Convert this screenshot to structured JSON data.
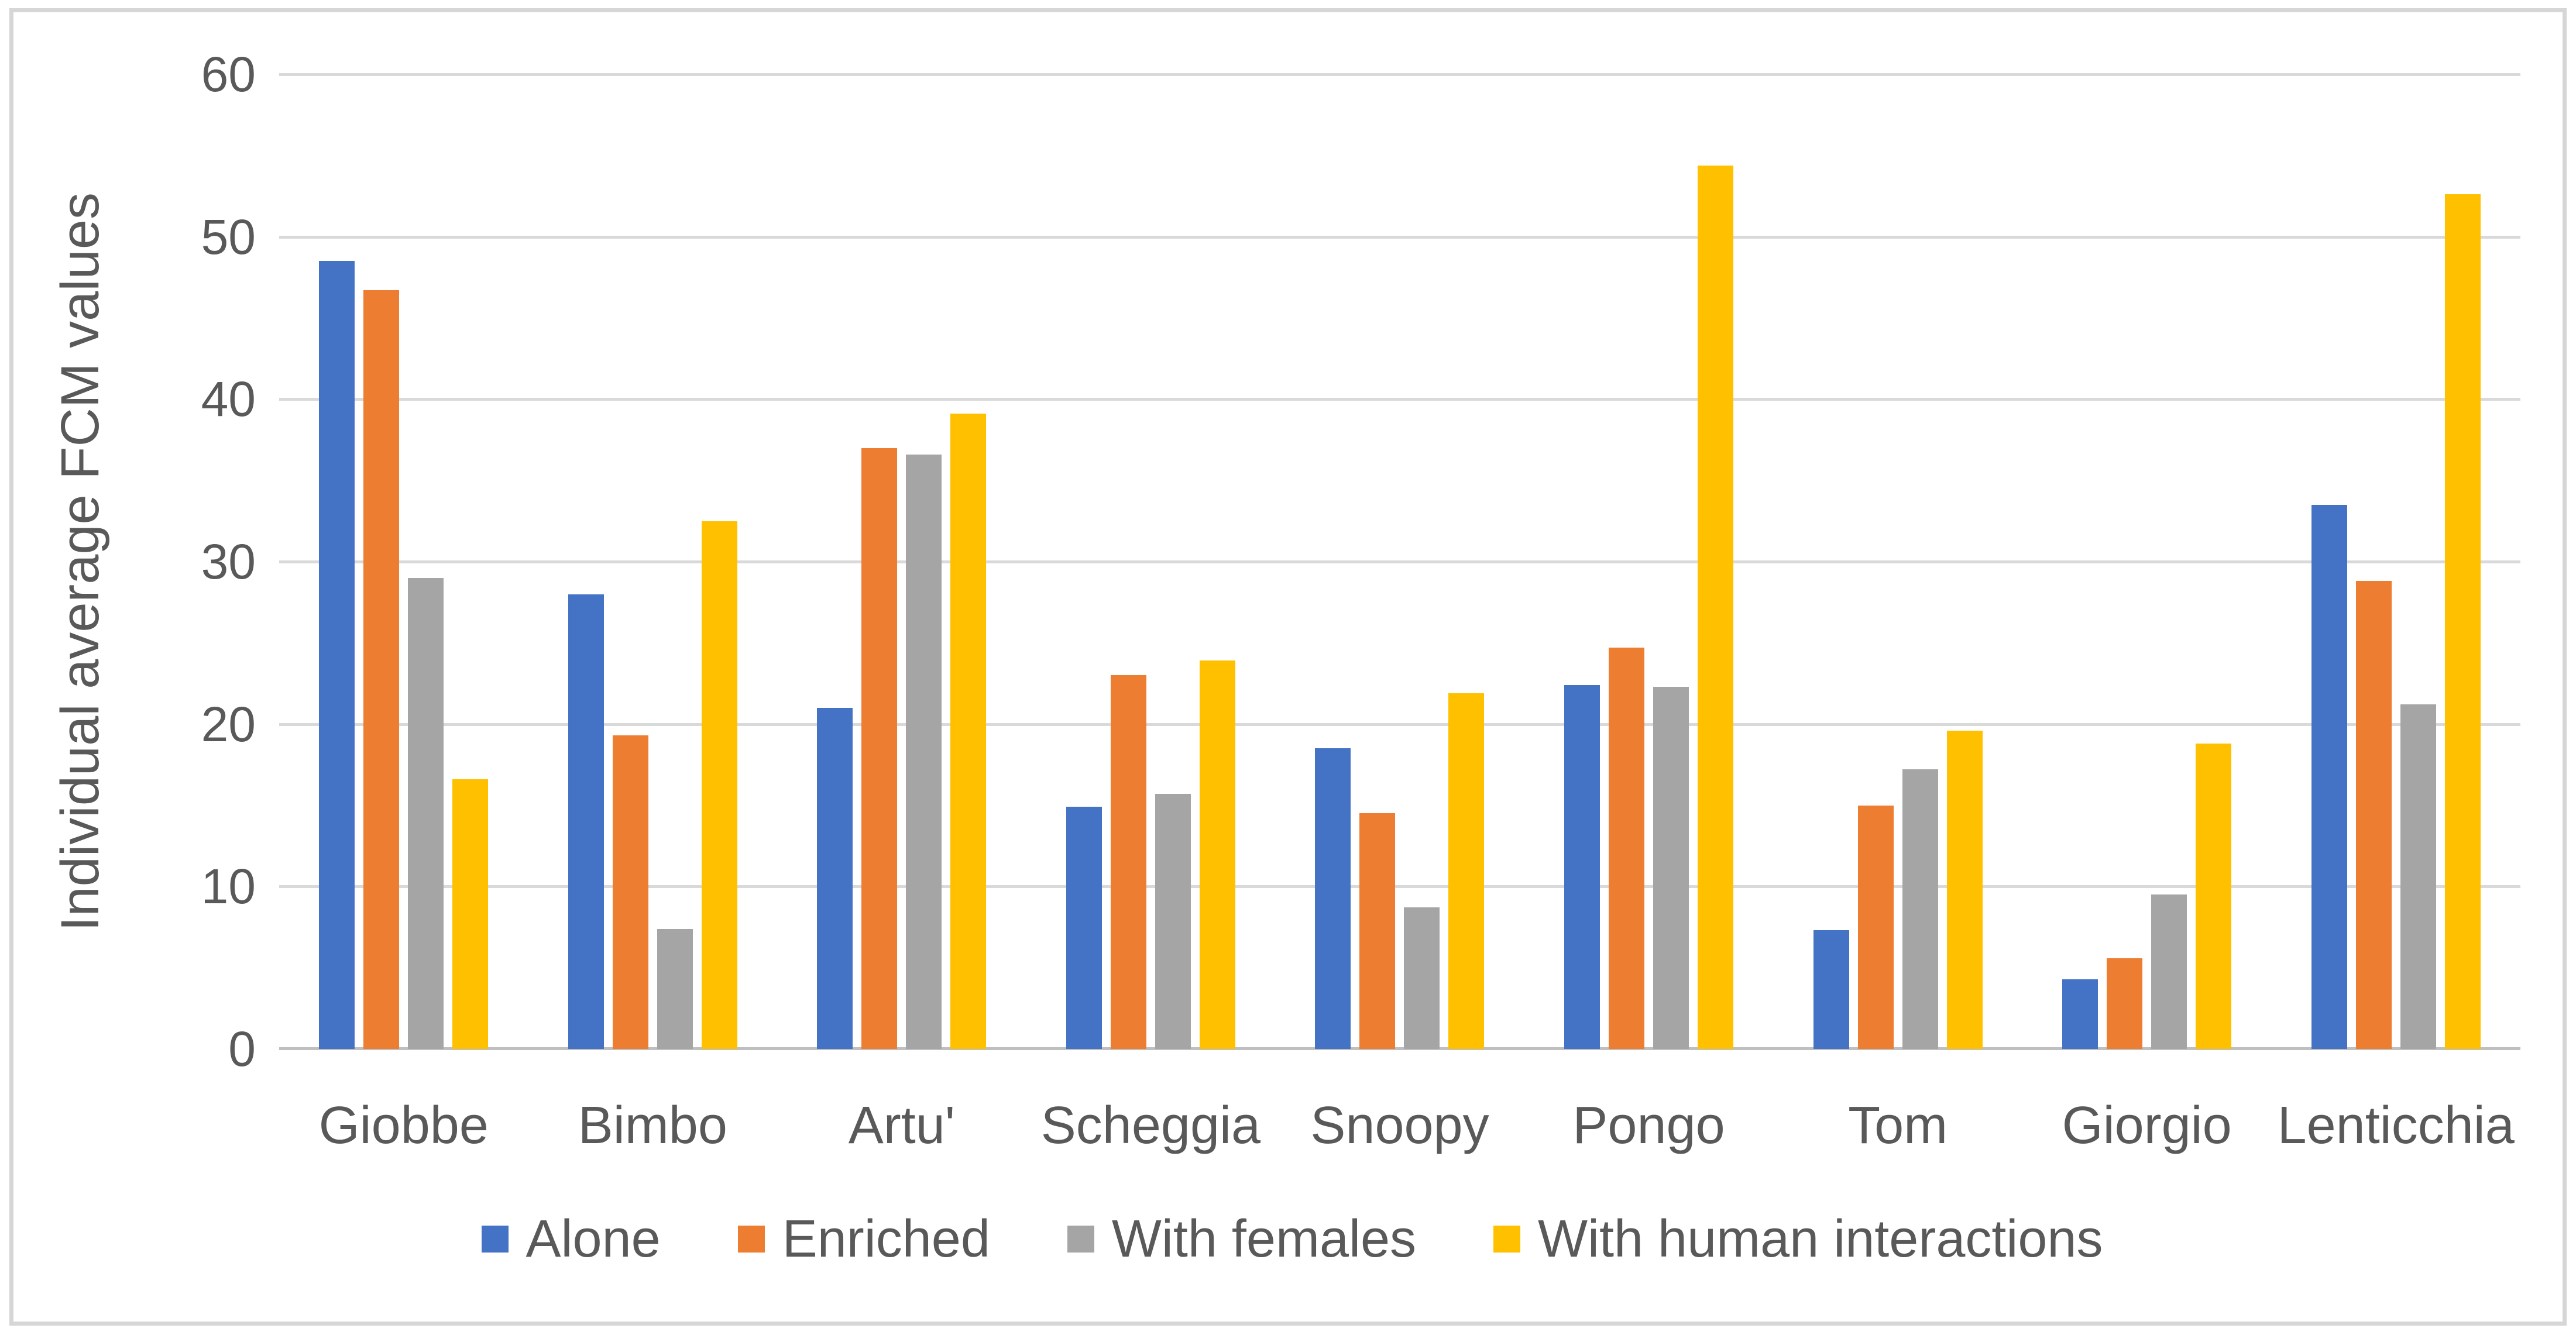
{
  "chart_data": {
    "type": "bar",
    "title": "",
    "xlabel": "",
    "ylabel": "Individual average FCM values",
    "ylim": [
      0,
      60
    ],
    "yticks": [
      0,
      10,
      20,
      30,
      40,
      50,
      60
    ],
    "grid": true,
    "legend_position": "bottom",
    "categories": [
      "Giobbe",
      "Bimbo",
      "Artu'",
      "Scheggia",
      "Snoopy",
      "Pongo",
      "Tom",
      "Giorgio",
      "Lenticchia"
    ],
    "series": [
      {
        "name": "Alone",
        "color": "#4472C4",
        "values": [
          48.5,
          28.0,
          21.0,
          14.9,
          18.5,
          22.4,
          7.3,
          4.3,
          33.5
        ]
      },
      {
        "name": "Enriched",
        "color": "#ED7D31",
        "values": [
          46.7,
          19.3,
          37.0,
          23.0,
          14.5,
          24.7,
          15.0,
          5.6,
          28.8
        ]
      },
      {
        "name": "With females",
        "color": "#A5A5A5",
        "values": [
          29.0,
          7.4,
          36.6,
          15.7,
          8.7,
          22.3,
          17.2,
          9.5,
          21.2
        ]
      },
      {
        "name": "With human interactions",
        "color": "#FFC000",
        "values": [
          16.6,
          32.5,
          39.1,
          23.9,
          21.9,
          54.4,
          19.6,
          18.8,
          52.6
        ]
      }
    ],
    "style_colors": {
      "gridline": "#D9D9D9",
      "axis_line": "#BFBFBF",
      "text": "#595959",
      "frame_border": "#D6D6D6",
      "background": "#FFFFFF"
    }
  }
}
